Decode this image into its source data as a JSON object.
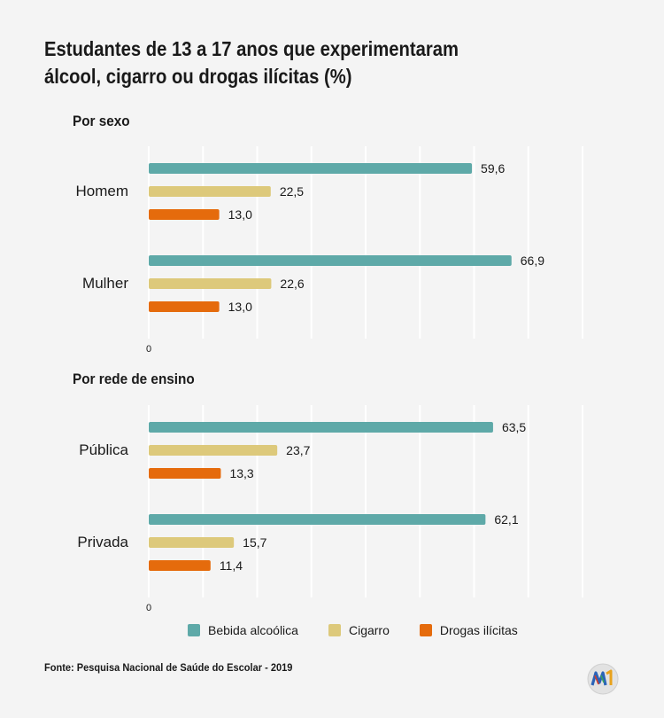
{
  "title_lines": [
    "Estudantes de 13 a 17 anos que experimentaram",
    "álcool, cigarro ou drogas ilícitas (%)"
  ],
  "colors": {
    "bebida": "#5ea9a8",
    "cigarro": "#ddc97b",
    "drogas": "#e56b0c",
    "grid": "#ffffff",
    "text": "#1a1a1a"
  },
  "legend": [
    {
      "label": "Bebida alcoólica",
      "color": "#5ea9a8"
    },
    {
      "label": "Cigarro",
      "color": "#ddc97b"
    },
    {
      "label": "Drogas ilícitas",
      "color": "#e56b0c"
    }
  ],
  "source": "Fonte: Pesquisa Nacional de Saúde do Escolar - 2019",
  "chart_data": [
    {
      "type": "bar",
      "orientation": "horizontal",
      "title": "Por sexo",
      "categories": [
        "Homem",
        "Mulher"
      ],
      "series": [
        {
          "name": "Bebida alcoólica",
          "values": [
            59.6,
            66.9
          ],
          "labels": [
            "59,6",
            "66,9"
          ]
        },
        {
          "name": "Cigarro",
          "values": [
            22.5,
            22.6
          ],
          "labels": [
            "22,5",
            "22,6"
          ]
        },
        {
          "name": "Drogas ilícitas",
          "values": [
            13.0,
            13.0
          ],
          "labels": [
            "13,0",
            "13,0"
          ]
        }
      ],
      "xlim": [
        0,
        80
      ],
      "x_tick_labels": [
        "0"
      ],
      "grid": true
    },
    {
      "type": "bar",
      "orientation": "horizontal",
      "title": "Por rede de ensino",
      "categories": [
        "Pública",
        "Privada"
      ],
      "series": [
        {
          "name": "Bebida alcoólica",
          "values": [
            63.5,
            62.1
          ],
          "labels": [
            "63,5",
            "62,1"
          ]
        },
        {
          "name": "Cigarro",
          "values": [
            23.7,
            15.7
          ],
          "labels": [
            "23,7",
            "15,7"
          ]
        },
        {
          "name": "Drogas ilícitas",
          "values": [
            13.3,
            11.4
          ],
          "labels": [
            "13,3",
            "11,4"
          ]
        }
      ],
      "xlim": [
        0,
        80
      ],
      "x_tick_labels": [
        "0"
      ],
      "grid": true
    }
  ]
}
